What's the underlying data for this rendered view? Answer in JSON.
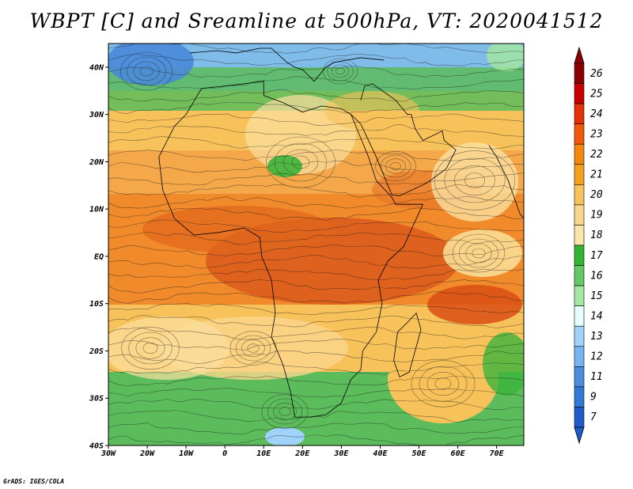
{
  "title": "WBPT [C] and Sreamline at 500hPa, VT: 2020041512",
  "credit": "GrADS: IGES/COLA",
  "chart_data": {
    "type": "heatmap",
    "variable": "WBPT [C]",
    "overlay": "streamline",
    "level": "500hPa",
    "valid_time": "2020041512",
    "x_range": [
      -30,
      77
    ],
    "y_range": [
      -40,
      45
    ],
    "x_ticks": [
      "30W",
      "20W",
      "10W",
      "0",
      "10E",
      "20E",
      "30E",
      "40E",
      "50E",
      "60E",
      "70E"
    ],
    "x_tick_values": [
      -30,
      -20,
      -10,
      0,
      10,
      20,
      30,
      40,
      50,
      60,
      70
    ],
    "y_ticks": [
      "40N",
      "30N",
      "20N",
      "10N",
      "EQ",
      "10S",
      "20S",
      "30S",
      "40S"
    ],
    "y_tick_values": [
      40,
      30,
      20,
      10,
      0,
      -10,
      -20,
      -30,
      -40
    ],
    "colorbar": {
      "levels": [
        "26",
        "25",
        "24",
        "23",
        "22",
        "21",
        "20",
        "19",
        "18",
        "17",
        "16",
        "15",
        "14",
        "13",
        "12",
        "11",
        "9",
        "7"
      ],
      "colors": [
        "#8b0000",
        "#c80000",
        "#e6300a",
        "#f05a0a",
        "#f5870f",
        "#f5a01e",
        "#f7c25a",
        "#fad68c",
        "#fae6aa",
        "#32b432",
        "#64c864",
        "#a5e6a0",
        "#e6ffff",
        "#a0d2fa",
        "#78b4f0",
        "#4b8cdc",
        "#3278d7",
        "#1e5ac8"
      ]
    }
  }
}
